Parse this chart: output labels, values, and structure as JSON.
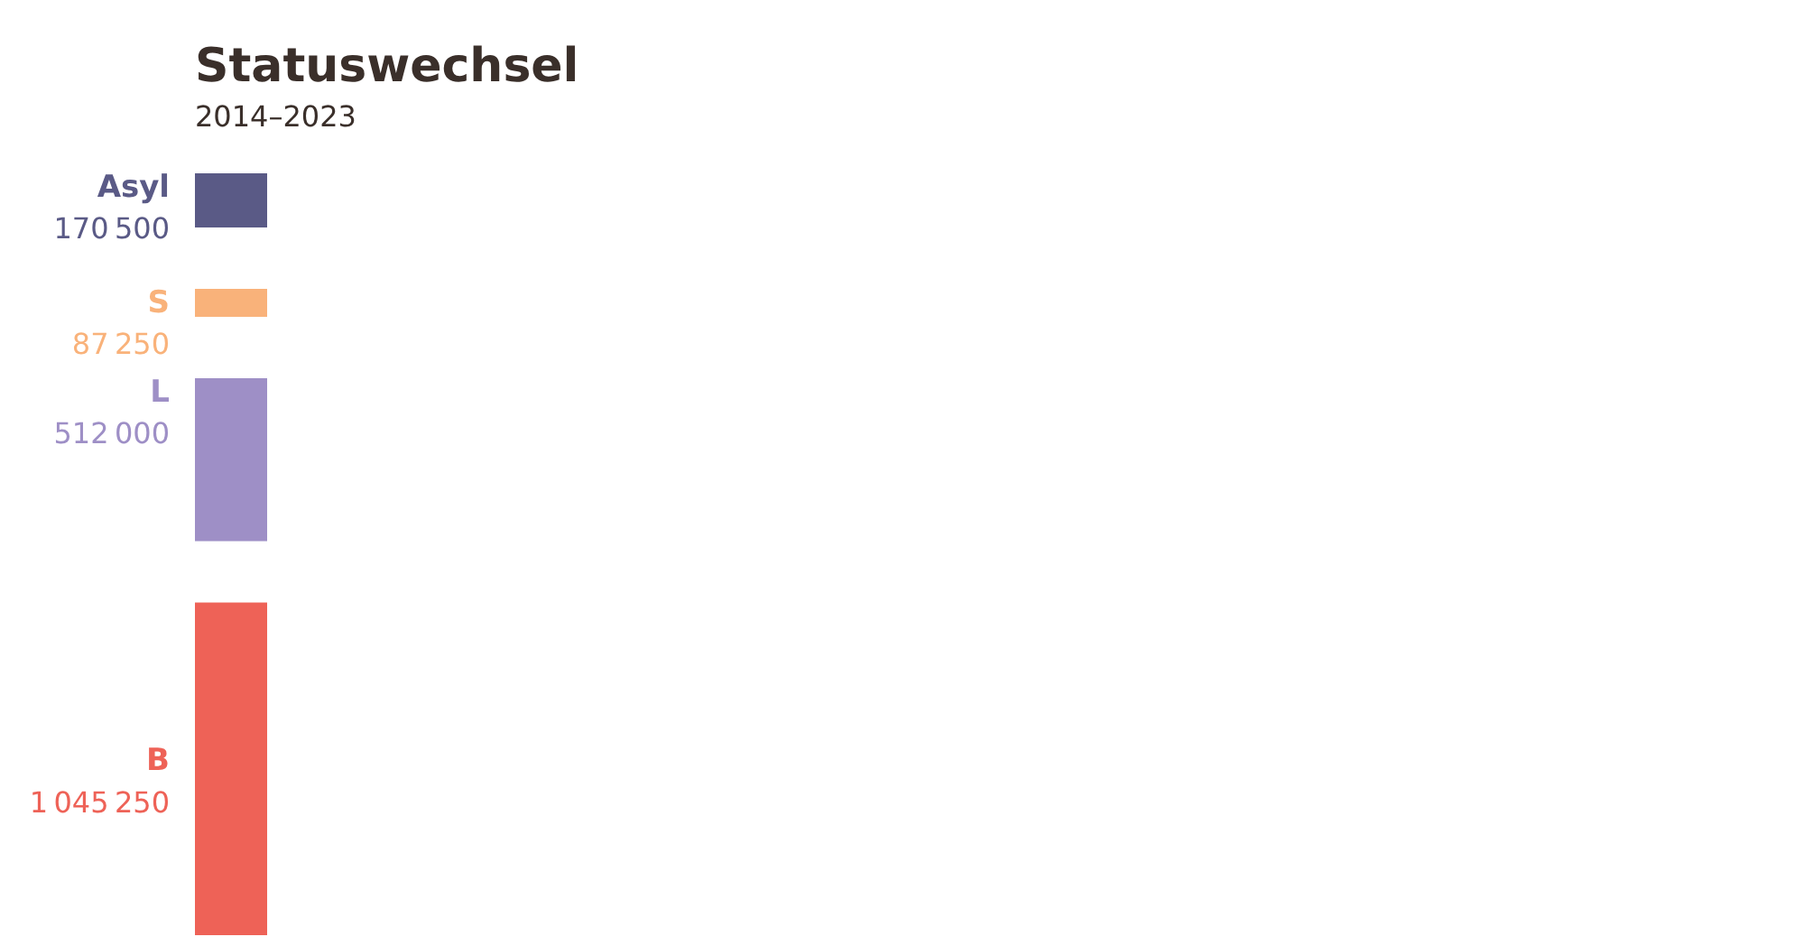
{
  "chart_data": {
    "type": "other",
    "title": "Statuswechsel",
    "subtitle": "2014–2023",
    "categories": [
      "Asyl",
      "S",
      "L",
      "B"
    ],
    "values": [
      170500,
      87250,
      512000,
      1045250
    ],
    "value_labels": [
      "170 500",
      "87 250",
      "512 000",
      "1 045 250"
    ],
    "colors": [
      "#5a5a86",
      "#f9b27a",
      "#9e8fc6",
      "#ee6257"
    ]
  }
}
